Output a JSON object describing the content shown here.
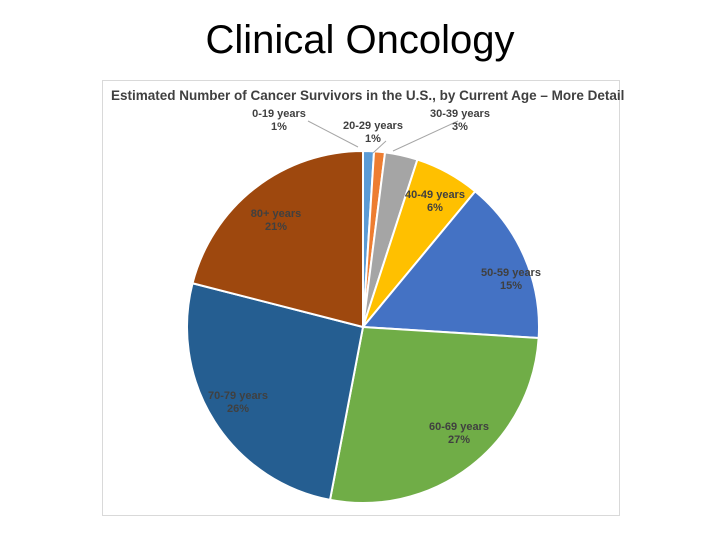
{
  "slide": {
    "title": "Clinical Oncology"
  },
  "chart_data": {
    "type": "pie",
    "title": "Estimated Number of Cancer Survivors in the U.S., by Current Age – More Detail",
    "slices": [
      {
        "label": "0-19 years",
        "value_label": "1%",
        "value": 1,
        "color": "#5b9bd5"
      },
      {
        "label": "20-29 years",
        "value_label": "1%",
        "value": 1,
        "color": "#ed7d31"
      },
      {
        "label": "30-39 years",
        "value_label": "3%",
        "value": 3,
        "color": "#a5a5a5"
      },
      {
        "label": "40-49 years",
        "value_label": "6%",
        "value": 6,
        "color": "#ffc000"
      },
      {
        "label": "50-59 years",
        "value_label": "15%",
        "value": 15,
        "color": "#4472c4"
      },
      {
        "label": "60-69 years",
        "value_label": "27%",
        "value": 27,
        "color": "#70ad47"
      },
      {
        "label": "70-79 years",
        "value_label": "26%",
        "value": 26,
        "color": "#255e91"
      },
      {
        "label": "80+ years",
        "value_label": "21%",
        "value": 21,
        "color": "#9e480e"
      }
    ]
  }
}
